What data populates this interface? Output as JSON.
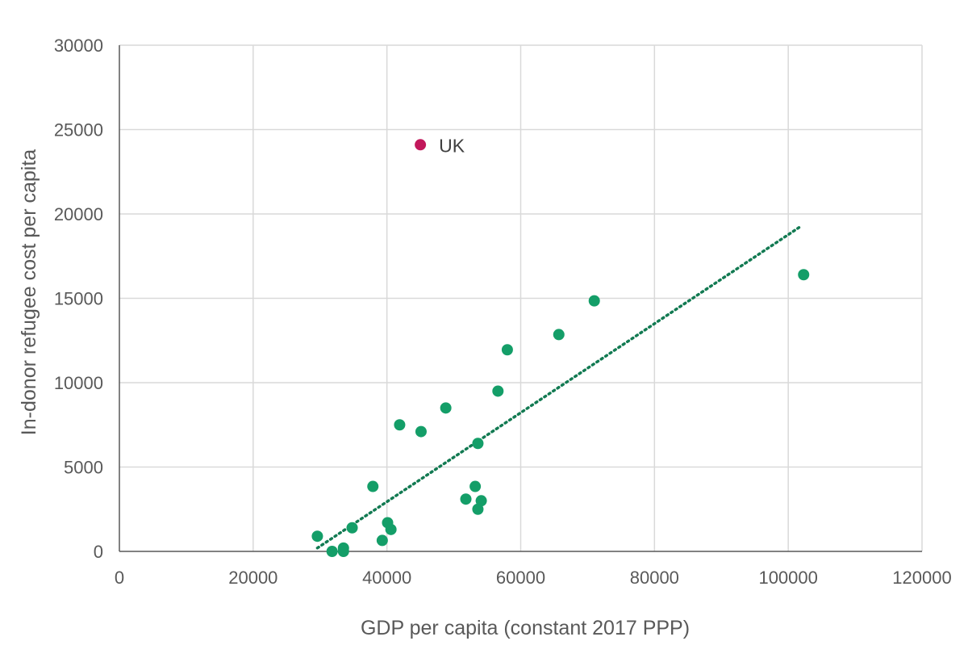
{
  "colors": {
    "series": "#149e68",
    "highlight": "#c2185b",
    "trendline": "#127a52",
    "grid": "#d9d9d9",
    "axis": "#595959",
    "text": "#595959"
  },
  "chart_data": {
    "type": "scatter",
    "xlabel": "GDP per capita (constant 2017 PPP)",
    "ylabel": "In-donor refugee cost per capita",
    "xlim": [
      0,
      120000
    ],
    "ylim": [
      0,
      30000
    ],
    "x_ticks": [
      0,
      20000,
      40000,
      60000,
      80000,
      100000,
      120000
    ],
    "y_ticks": [
      0,
      5000,
      10000,
      15000,
      20000,
      25000,
      30000
    ],
    "x_tick_labels": [
      "0",
      "20000",
      "40000",
      "60000",
      "80000",
      "100000",
      "120000"
    ],
    "y_tick_labels": [
      "0",
      "5000",
      "10000",
      "15000",
      "20000",
      "25000",
      "30000"
    ],
    "grid": true,
    "legend": "none",
    "series": [
      {
        "points": [
          {
            "x": 29600,
            "y": 900
          },
          {
            "x": 31800,
            "y": 0
          },
          {
            "x": 33500,
            "y": 200
          },
          {
            "x": 33500,
            "y": 0
          },
          {
            "x": 34800,
            "y": 1400
          },
          {
            "x": 37900,
            "y": 3850
          },
          {
            "x": 39300,
            "y": 650
          },
          {
            "x": 40100,
            "y": 1700
          },
          {
            "x": 40600,
            "y": 1300
          },
          {
            "x": 41900,
            "y": 7500
          },
          {
            "x": 45100,
            "y": 7100
          },
          {
            "x": 48800,
            "y": 8500
          },
          {
            "x": 51800,
            "y": 3100
          },
          {
            "x": 53200,
            "y": 3850
          },
          {
            "x": 53600,
            "y": 6400
          },
          {
            "x": 53600,
            "y": 2500
          },
          {
            "x": 54100,
            "y": 3000
          },
          {
            "x": 56600,
            "y": 9500
          },
          {
            "x": 58000,
            "y": 11950
          },
          {
            "x": 65700,
            "y": 12850
          },
          {
            "x": 71000,
            "y": 14850
          },
          {
            "x": 102300,
            "y": 16400
          }
        ]
      }
    ],
    "highlight": {
      "label": "UK",
      "x": 45000,
      "y": 24100
    },
    "trendline": {
      "style": "dotted",
      "linear": true,
      "from": {
        "x": 29600,
        "y": 200
      },
      "to": {
        "x": 102000,
        "y": 19300
      }
    }
  }
}
